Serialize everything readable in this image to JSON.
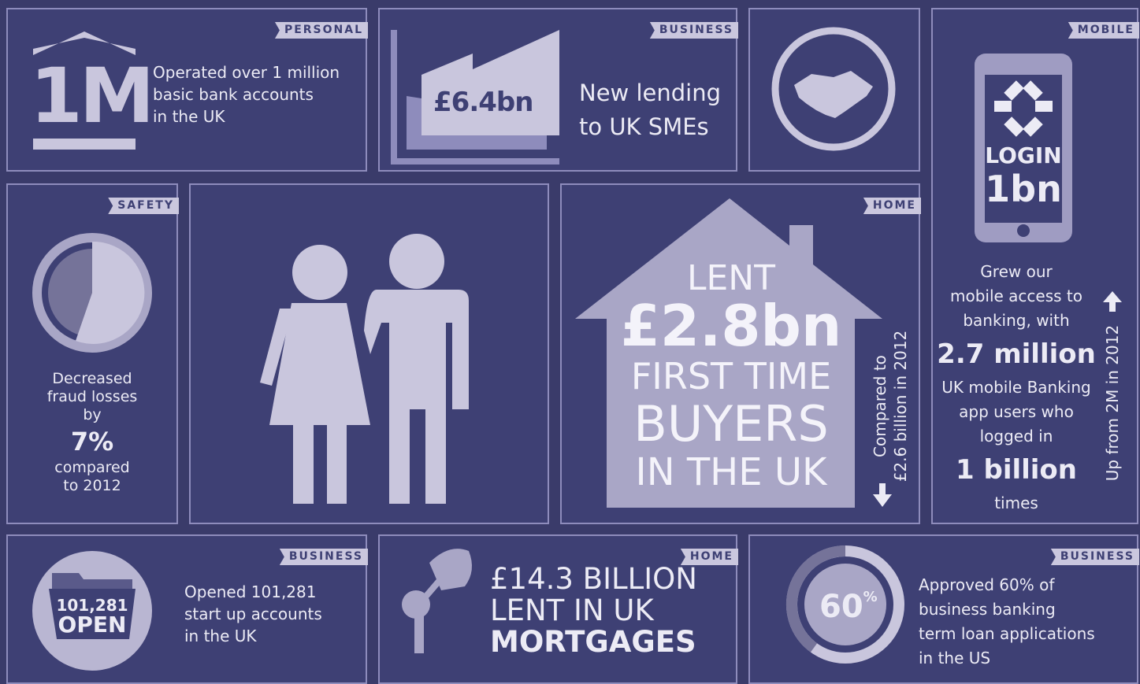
{
  "personal": {
    "tag": "PERSONAL",
    "figure": "1M",
    "lines": [
      "Operated over 1 million",
      "basic bank accounts",
      "in the UK"
    ]
  },
  "sme": {
    "tag": "BUSINESS",
    "figure": "£6.4bn",
    "lines": [
      "New lending",
      "to UK SMEs"
    ]
  },
  "mobile": {
    "tag": "MOBILE",
    "screen": [
      "LOGIN",
      "1bn"
    ],
    "lines": [
      "Grew our",
      "mobile access to",
      "banking, with"
    ],
    "highlight": "2.7 million",
    "lines2": [
      "UK mobile Banking",
      "app users who",
      "logged in"
    ],
    "highlight2": "1 billion",
    "end": "times",
    "side": "Up from 2M in 2012"
  },
  "safety": {
    "tag": "SAFETY",
    "lines": [
      "Decreased",
      "fraud losses",
      "by"
    ],
    "highlight": "7%",
    "lines2": [
      "compared",
      "to 2012"
    ]
  },
  "home": {
    "tag": "HOME",
    "lines": [
      "LENT",
      "£2.8bn",
      "FIRST TIME",
      "BUYERS",
      "IN THE UK"
    ],
    "side": [
      "Compared to",
      "£2.6 billion in 2012"
    ]
  },
  "startup": {
    "tag": "BUSINESS",
    "icon": [
      "101,281",
      "OPEN"
    ],
    "lines": [
      "Opened 101,281",
      "start up accounts",
      "in the UK"
    ]
  },
  "mortgages": {
    "tag": "HOME",
    "lines": [
      "£14.3 BILLION",
      "LENT IN UK",
      "MORTGAGES"
    ]
  },
  "loans": {
    "tag": "BUSINESS",
    "figure": "60",
    "figure_sup": "%",
    "lines": [
      "Approved 60% of",
      "business banking",
      "term loan applications",
      "in the US"
    ]
  }
}
